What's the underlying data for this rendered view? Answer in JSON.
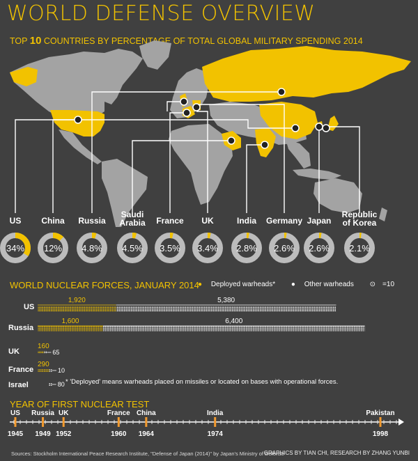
{
  "title": "WORLD DEFENSE OVERVIEW",
  "subtitle_pre": "TOP",
  "subtitle_num": "10",
  "subtitle_post": "COUNTRIES BY PERCENTAGE OF TOTAL GLOBAL MILITARY SPENDING 2014",
  "colors": {
    "background": "#404040",
    "accent": "#f2c200",
    "land": "#a3a3a3",
    "highlight": "#f2c200",
    "ring": "#bcbcbc"
  },
  "chart_data": [
    {
      "type": "pie",
      "title": "TOP 10 COUNTRIES BY PERCENTAGE OF TOTAL GLOBAL MILITARY SPENDING 2014",
      "categories": [
        "US",
        "China",
        "Russia",
        "Saudi Arabia",
        "France",
        "UK",
        "India",
        "Germany",
        "Japan",
        "Republic of Korea"
      ],
      "values": [
        34,
        12,
        4.8,
        4.5,
        3.5,
        3.4,
        2.8,
        2.6,
        2.6,
        2.1
      ],
      "labels": [
        "34%",
        "12%",
        "4.8%",
        "4.5%",
        "3.5%",
        "3.4%",
        "2.8%",
        "2.6%",
        "2.6%",
        "2.1%"
      ]
    },
    {
      "type": "bar",
      "title": "WORLD NUCLEAR FORCES, JANUARY 2014",
      "categories": [
        "US",
        "Russia",
        "UK",
        "France",
        "Israel"
      ],
      "series": [
        {
          "name": "Deployed warheads*",
          "values": [
            1920,
            1600,
            160,
            290,
            0
          ],
          "labels": [
            "1,920",
            "1,600",
            "160",
            "290",
            ""
          ]
        },
        {
          "name": "Other warheads",
          "values": [
            5380,
            6400,
            65,
            10,
            80
          ],
          "labels": [
            "5,380",
            "6,400",
            "65",
            "10",
            "80"
          ]
        }
      ],
      "legend_unit": "=10",
      "note": "* 'Deployed' means warheads placed on missiles or located on bases with operational forces."
    },
    {
      "type": "scatter",
      "title": "YEAR OF FIRST NUCLEAR TEST",
      "categories": [
        "US",
        "Russia",
        "UK",
        "France",
        "China",
        "India",
        "Pakistan"
      ],
      "x": [
        1945,
        1949,
        1952,
        1960,
        1964,
        1974,
        1998
      ],
      "tick_labels": [
        "1945",
        "1949",
        "1952",
        "1960",
        "1964",
        "1974",
        "1998"
      ]
    }
  ],
  "sources": "Sources: Stockholm International Peace Research Institute, \"Defense of Japan (2014)\" by Japan's Ministry of Defense",
  "credit": "GRAPHICS BY TIAN CHI, RESEARCH BY ZHANG YUNBI"
}
